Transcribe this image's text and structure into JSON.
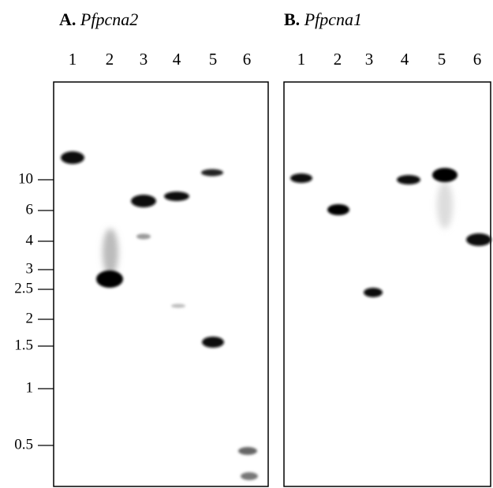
{
  "panels": [
    {
      "letter": "A.",
      "gene": "Pfpcna2",
      "lanes": [
        "1",
        "2",
        "3",
        "4",
        "5",
        "6"
      ]
    },
    {
      "letter": "B.",
      "gene": "Pfpcna1",
      "lanes": [
        "1",
        "2",
        "3",
        "4",
        "5",
        "6"
      ]
    }
  ],
  "markers": [
    "10",
    "6",
    "4",
    "3",
    "2.5",
    "2",
    "1.5",
    "1",
    "0.5"
  ]
}
